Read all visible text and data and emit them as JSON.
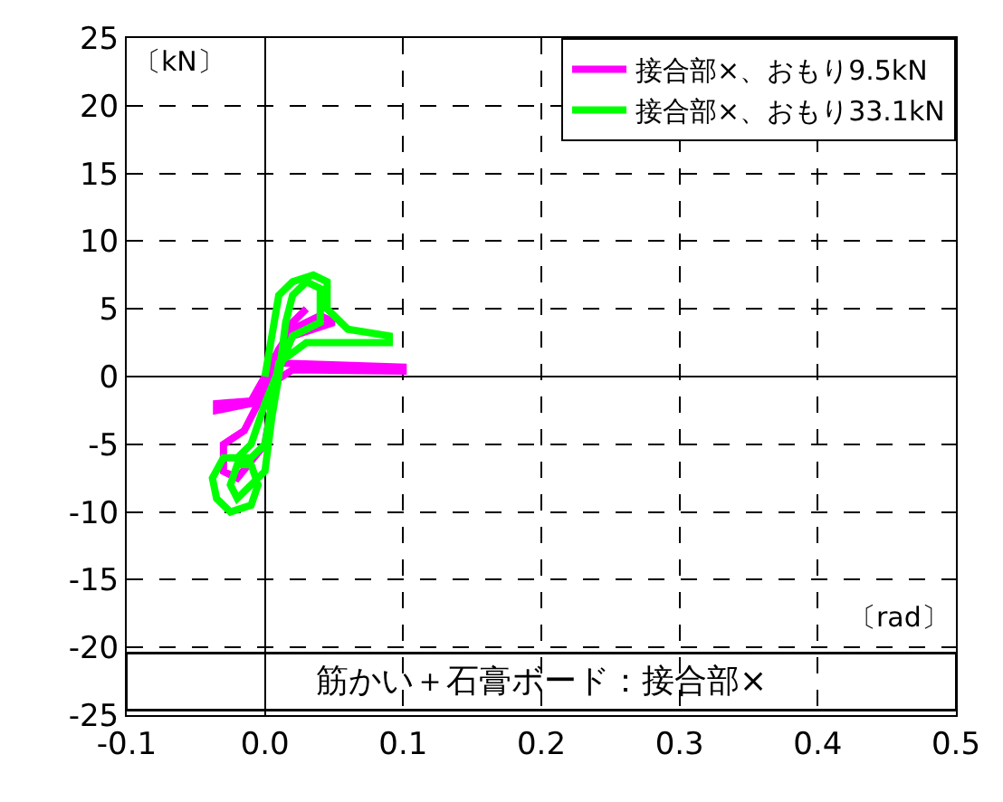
{
  "chart_data": {
    "type": "line",
    "title": "筋かい＋石膏ボード：接合部×",
    "xlabel": "〔rad〕",
    "ylabel": "〔kN〕",
    "xlim": [
      -0.1,
      0.5
    ],
    "xticks": [
      {
        "value": -0.1,
        "label": "-0.1"
      },
      {
        "value": 0,
        "label": "0.0"
      },
      0.1,
      0.2,
      0.3,
      0.4,
      0.5
    ],
    "ylim": [
      -25,
      25
    ],
    "yticks": [
      -25,
      -20,
      -15,
      -10,
      -5,
      0,
      5,
      10,
      15,
      20,
      25
    ],
    "grid": true,
    "legend": "top right",
    "marker": "none",
    "line_style": "solid",
    "series": [
      {
        "name": "接合部×、おもり9.5kN",
        "color": "#ff00ff",
        "x": [
          0,
          0.01,
          0.1,
          0.1,
          0.02,
          0.005,
          -0.01,
          -0.035,
          -0.035,
          -0.01,
          0,
          0.01,
          0.02,
          0.04,
          0.05,
          0.02,
          0,
          -0.015,
          -0.03,
          -0.03,
          -0.02,
          0,
          0.01,
          0.02,
          0.03
        ],
        "values": [
          0,
          1,
          0.7,
          0.4,
          0.5,
          -0.5,
          -2,
          -2.5,
          -2,
          -1.8,
          0,
          2,
          3.5,
          4.5,
          4,
          3,
          -1,
          -4,
          -5,
          -7,
          -7.5,
          -5,
          1,
          4,
          5
        ]
      },
      {
        "name": "接合部×、おもり33.1kN",
        "color": "#00ff00",
        "x": [
          0,
          0.005,
          0.01,
          0.02,
          0.035,
          0.045,
          0.045,
          0.06,
          0.09,
          0.09,
          0.03,
          0.01,
          0.005,
          0,
          -0.01,
          -0.03,
          -0.038,
          -0.035,
          -0.025,
          -0.01,
          -0.005,
          -0.01,
          -0.02,
          -0.025,
          -0.02,
          0,
          0.005,
          0.01,
          0.015,
          0.02,
          0.03,
          0.04,
          0.04,
          0.02,
          0,
          -0.01,
          -0.02
        ],
        "values": [
          0,
          3,
          6,
          7,
          7.5,
          7,
          5,
          3.5,
          3,
          2.5,
          2.5,
          1,
          -2,
          -5,
          -6,
          -6,
          -7.5,
          -9,
          -10,
          -9.5,
          -8,
          -6.5,
          -6.5,
          -8,
          -9,
          -7,
          -3,
          0,
          4,
          6,
          7,
          6.5,
          4,
          3,
          -2,
          -5,
          -6
        ]
      }
    ]
  }
}
